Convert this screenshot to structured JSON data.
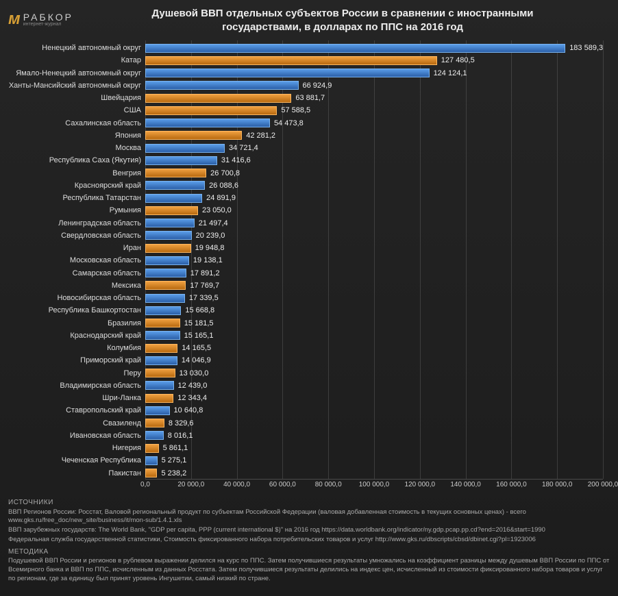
{
  "logo": {
    "brand": "РАБКОР",
    "tagline": "интернет-журнал"
  },
  "title_line1": "Душевой ВВП отдельных субъектов России в сравнении с иностранными",
  "title_line2": "государствами, в долларах по ППС на 2016 год",
  "chart": {
    "type": "bar-horizontal",
    "xmax": 200000,
    "xtick_step": 20000,
    "xtick_labels": [
      "0,0",
      "20 000,0",
      "40 000,0",
      "60 000,0",
      "80 000,0",
      "100 000,0",
      "120 000,0",
      "140 000,0",
      "160 000,0",
      "180 000,0",
      "200 000,0"
    ],
    "grid_color": "rgba(120,120,120,0.35)",
    "background_color": "#1e1e1e",
    "bar_colors": {
      "russia": "#4a85d0",
      "foreign": "#d8872c"
    },
    "label_fontsize": 11,
    "value_fontsize": 11,
    "bars": [
      {
        "label": "Ненецкий автономный округ",
        "value": 183589.3,
        "display": "183 589,3",
        "type": "russia"
      },
      {
        "label": "Катар",
        "value": 127480.5,
        "display": "127 480,5",
        "type": "foreign"
      },
      {
        "label": "Ямало-Ненецкий автономный округ",
        "value": 124124.1,
        "display": "124 124,1",
        "type": "russia"
      },
      {
        "label": "Ханты-Мансийский автономный округ",
        "value": 66924.9,
        "display": "66 924,9",
        "type": "russia"
      },
      {
        "label": "Швейцария",
        "value": 63881.7,
        "display": "63 881,7",
        "type": "foreign"
      },
      {
        "label": "США",
        "value": 57588.5,
        "display": "57 588,5",
        "type": "foreign"
      },
      {
        "label": "Сахалинская область",
        "value": 54473.8,
        "display": "54 473,8",
        "type": "russia"
      },
      {
        "label": "Япония",
        "value": 42281.2,
        "display": "42 281,2",
        "type": "foreign"
      },
      {
        "label": "Москва",
        "value": 34721.4,
        "display": "34 721,4",
        "type": "russia"
      },
      {
        "label": "Республика Саха (Якутия)",
        "value": 31416.6,
        "display": "31 416,6",
        "type": "russia"
      },
      {
        "label": "Венгрия",
        "value": 26700.8,
        "display": "26 700,8",
        "type": "foreign"
      },
      {
        "label": "Красноярский край",
        "value": 26088.6,
        "display": "26 088,6",
        "type": "russia"
      },
      {
        "label": "Республика Татарстан",
        "value": 24891.9,
        "display": "24 891,9",
        "type": "russia"
      },
      {
        "label": "Румыния",
        "value": 23050.0,
        "display": "23 050,0",
        "type": "foreign"
      },
      {
        "label": "Ленинградская область",
        "value": 21497.4,
        "display": "21 497,4",
        "type": "russia"
      },
      {
        "label": "Свердловская область",
        "value": 20239.0,
        "display": "20 239,0",
        "type": "russia"
      },
      {
        "label": "Иран",
        "value": 19948.8,
        "display": "19 948,8",
        "type": "foreign"
      },
      {
        "label": "Московская область",
        "value": 19138.1,
        "display": "19 138,1",
        "type": "russia"
      },
      {
        "label": "Самарская область",
        "value": 17891.2,
        "display": "17 891,2",
        "type": "russia"
      },
      {
        "label": "Мексика",
        "value": 17769.7,
        "display": "17 769,7",
        "type": "foreign"
      },
      {
        "label": "Новосибирская область",
        "value": 17339.5,
        "display": "17 339,5",
        "type": "russia"
      },
      {
        "label": "Республика Башкортостан",
        "value": 15668.8,
        "display": "15 668,8",
        "type": "russia"
      },
      {
        "label": "Бразилия",
        "value": 15181.5,
        "display": "15 181,5",
        "type": "foreign"
      },
      {
        "label": "Краснодарский край",
        "value": 15165.1,
        "display": "15 165,1",
        "type": "russia"
      },
      {
        "label": "Колумбия",
        "value": 14165.5,
        "display": "14 165,5",
        "type": "foreign"
      },
      {
        "label": "Приморский край",
        "value": 14046.9,
        "display": "14 046,9",
        "type": "russia"
      },
      {
        "label": "Перу",
        "value": 13030.0,
        "display": "13 030,0",
        "type": "foreign"
      },
      {
        "label": "Владимирская область",
        "value": 12439.0,
        "display": "12 439,0",
        "type": "russia"
      },
      {
        "label": "Шри-Ланка",
        "value": 12343.4,
        "display": "12 343,4",
        "type": "foreign"
      },
      {
        "label": "Ставропольский край",
        "value": 10640.8,
        "display": "10 640,8",
        "type": "russia"
      },
      {
        "label": "Свазиленд",
        "value": 8329.6,
        "display": "8 329,6",
        "type": "foreign"
      },
      {
        "label": "Ивановская область",
        "value": 8016.1,
        "display": "8 016,1",
        "type": "russia"
      },
      {
        "label": "Нигерия",
        "value": 5861.1,
        "display": "5 861,1",
        "type": "foreign"
      },
      {
        "label": "Чеченская Республика",
        "value": 5275.1,
        "display": "5 275,1",
        "type": "russia"
      },
      {
        "label": "Пакистан",
        "value": 5238.2,
        "display": "5 238,2",
        "type": "foreign"
      }
    ]
  },
  "footer": {
    "sources_heading": "ИСТОЧНИКИ",
    "sources_lines": [
      "ВВП Регионов России: Росстат, Валовой региональный продукт по субъектам Российской Федерации (валовая добавленная стоимость в текущих основных ценах) - всего www.gks.ru/free_doc/new_site/business/it/mon-sub/1.4.1.xls",
      "ВВП зарубежных государств: The World Bank, \"GDP per capita, PPP (current international $)\" на 2016 год https://data.worldbank.org/indicator/ny.gdp.pcap.pp.cd?end=2016&start=1990",
      "Федеральная служба государственной статистики, Стоимость фиксированного набора потребительских товаров и услуг http://www.gks.ru/dbscripts/cbsd/dbinet.cgi?pl=1923006"
    ],
    "method_heading": "МЕТОДИКА",
    "method_text": "Подушевой ВВП России и регионов в рублевом выражении делился на курс по ППС. Затем получившиеся результаты умножались на коэффициент разницы между душевым ВВП России по ППС от Всемирного банка и ВВП по ППС, исчисленным из данных Росстата. Затем получившиеся результаты делились на индекс цен, исчисленный из стоимости фиксированного набора товаров и услуг по регионам, где за единицу был принят уровень Ингушетии, самый низкий по стране."
  }
}
